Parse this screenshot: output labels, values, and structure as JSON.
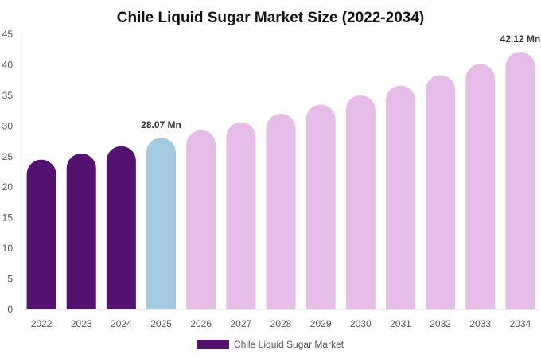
{
  "chart_data": {
    "type": "bar",
    "title": "Chile Liquid Sugar Market Size (2022-2034)",
    "xlabel": "",
    "ylabel": "",
    "categories": [
      "2022",
      "2023",
      "2024",
      "2025",
      "2026",
      "2027",
      "2028",
      "2029",
      "2030",
      "2031",
      "2032",
      "2033",
      "2034"
    ],
    "series": [
      {
        "name": "Chile Liquid Sugar Market",
        "values": [
          24.5,
          25.5,
          26.7,
          28.07,
          29.3,
          30.6,
          32.0,
          33.5,
          35.0,
          36.6,
          38.3,
          40.1,
          42.12
        ],
        "colors": [
          "#531170",
          "#531170",
          "#531170",
          "#a3cadf",
          "#e6bce8",
          "#e6bce8",
          "#e6bce8",
          "#e6bce8",
          "#e6bce8",
          "#e6bce8",
          "#e6bce8",
          "#e6bce8",
          "#e6bce8"
        ]
      }
    ],
    "data_labels": [
      {
        "index": 3,
        "text": "28.07 Mn"
      },
      {
        "index": 12,
        "text": "42.12 Mn"
      }
    ],
    "ylim": [
      0,
      45
    ],
    "yticks": [
      0,
      5,
      10,
      15,
      20,
      25,
      30,
      35,
      40,
      45
    ],
    "grid": false,
    "legend": {
      "position": "bottom",
      "label": "Chile Liquid Sugar Market",
      "color": "#531170"
    }
  }
}
